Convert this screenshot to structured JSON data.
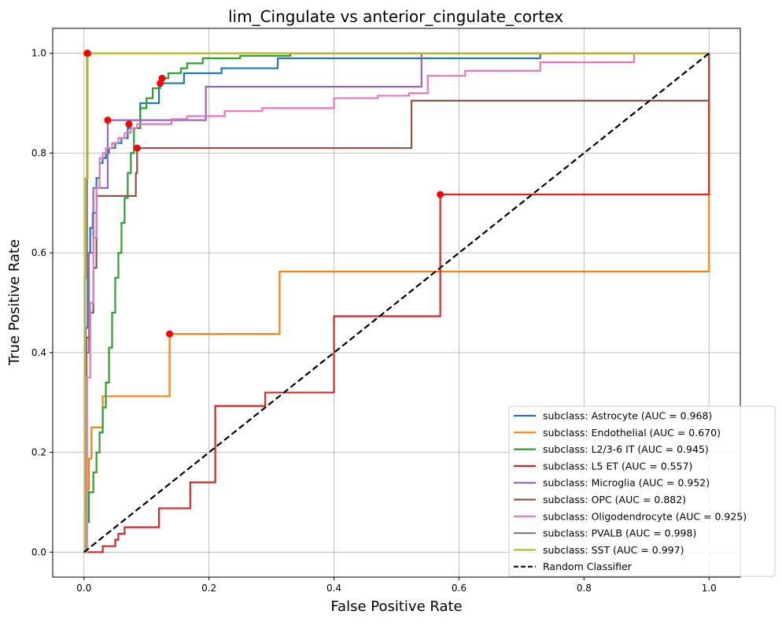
{
  "chart_data": {
    "type": "line",
    "title": "lim_Cingulate vs anterior_cingulate_cortex",
    "xlabel": "False Positive Rate",
    "ylabel": "True Positive Rate",
    "xlim": [
      -0.05,
      1.05
    ],
    "ylim": [
      -0.05,
      1.05
    ],
    "xticks": [
      0.0,
      0.2,
      0.4,
      0.6,
      0.8,
      1.0
    ],
    "yticks": [
      0.0,
      0.2,
      0.4,
      0.6,
      0.8,
      1.0
    ],
    "xtick_labels": [
      "0.0",
      "0.2",
      "0.4",
      "0.6",
      "0.8",
      "1.0"
    ],
    "ytick_labels": [
      "0.0",
      "0.2",
      "0.4",
      "0.6",
      "0.8",
      "1.0"
    ],
    "grid": true,
    "legend_position": "lower-right",
    "series": [
      {
        "name": "subclass: Astrocyte (AUC = 0.968)",
        "color": "#1f77b4",
        "x": [
          0.0,
          0.003,
          0.003,
          0.006,
          0.006,
          0.01,
          0.01,
          0.014,
          0.014,
          0.02,
          0.02,
          0.025,
          0.025,
          0.03,
          0.03,
          0.035,
          0.035,
          0.04,
          0.04,
          0.05,
          0.05,
          0.06,
          0.06,
          0.07,
          0.07,
          0.09,
          0.09,
          0.12,
          0.12,
          0.16,
          0.16,
          0.22,
          0.22,
          0.31,
          0.31,
          0.73,
          0.73,
          1.0
        ],
        "y": [
          0.0,
          0.0,
          0.45,
          0.45,
          0.6,
          0.6,
          0.65,
          0.65,
          0.68,
          0.68,
          0.75,
          0.75,
          0.78,
          0.78,
          0.79,
          0.79,
          0.8,
          0.8,
          0.81,
          0.81,
          0.82,
          0.82,
          0.83,
          0.83,
          0.85,
          0.85,
          0.9,
          0.9,
          0.94,
          0.94,
          0.96,
          0.96,
          0.97,
          0.97,
          0.99,
          0.99,
          1.0,
          1.0
        ]
      },
      {
        "name": "subclass: Endothelial (AUC = 0.670)",
        "color": "#ff7f0e",
        "x": [
          0.0,
          0.003,
          0.003,
          0.008,
          0.008,
          0.012,
          0.012,
          0.018,
          0.018,
          0.03,
          0.03,
          0.137,
          0.137,
          0.313,
          0.313,
          1.0,
          1.0
        ],
        "y": [
          0.0,
          0.0,
          0.125,
          0.125,
          0.1875,
          0.1875,
          0.25,
          0.25,
          0.25,
          0.25,
          0.3125,
          0.3125,
          0.4375,
          0.4375,
          0.5625,
          0.5625,
          1.0
        ]
      },
      {
        "name": "subclass: L2/3-6 IT (AUC = 0.945)",
        "color": "#2ca02c",
        "x": [
          0.0,
          0.004,
          0.004,
          0.008,
          0.008,
          0.015,
          0.015,
          0.02,
          0.02,
          0.025,
          0.025,
          0.03,
          0.03,
          0.035,
          0.035,
          0.04,
          0.04,
          0.045,
          0.045,
          0.05,
          0.05,
          0.055,
          0.055,
          0.06,
          0.06,
          0.065,
          0.065,
          0.07,
          0.07,
          0.075,
          0.075,
          0.08,
          0.08,
          0.09,
          0.09,
          0.1,
          0.1,
          0.11,
          0.11,
          0.122,
          0.122,
          0.135,
          0.135,
          0.155,
          0.155,
          0.165,
          0.165,
          0.19,
          0.19,
          0.25,
          0.25,
          0.33,
          0.33,
          1.0
        ],
        "y": [
          0.0,
          0.0,
          0.06,
          0.06,
          0.12,
          0.12,
          0.16,
          0.16,
          0.2,
          0.2,
          0.24,
          0.24,
          0.29,
          0.29,
          0.34,
          0.34,
          0.41,
          0.41,
          0.48,
          0.48,
          0.55,
          0.55,
          0.6,
          0.6,
          0.66,
          0.66,
          0.71,
          0.71,
          0.76,
          0.76,
          0.8,
          0.8,
          0.85,
          0.85,
          0.89,
          0.89,
          0.91,
          0.91,
          0.93,
          0.93,
          0.95,
          0.95,
          0.96,
          0.96,
          0.97,
          0.97,
          0.98,
          0.98,
          0.99,
          0.99,
          0.995,
          0.995,
          1.0,
          1.0
        ]
      },
      {
        "name": "subclass: L5 ET (AUC = 0.557)",
        "color": "#d62728",
        "x": [
          0.0,
          0.03,
          0.03,
          0.05,
          0.05,
          0.055,
          0.055,
          0.065,
          0.065,
          0.075,
          0.075,
          0.12,
          0.12,
          0.17,
          0.17,
          0.21,
          0.21,
          0.29,
          0.29,
          0.4,
          0.4,
          0.57,
          0.57,
          1.0,
          1.0
        ],
        "y": [
          0.0,
          0.0,
          0.012,
          0.012,
          0.025,
          0.025,
          0.037,
          0.037,
          0.05,
          0.05,
          0.05,
          0.05,
          0.088,
          0.088,
          0.14,
          0.14,
          0.293,
          0.293,
          0.32,
          0.32,
          0.473,
          0.473,
          0.717,
          0.717,
          1.0
        ]
      },
      {
        "name": "subclass: Microglia (AUC = 0.952)",
        "color": "#9467bd",
        "x": [
          0.0,
          0.003,
          0.003,
          0.008,
          0.008,
          0.015,
          0.015,
          0.038,
          0.038,
          0.075,
          0.075,
          0.195,
          0.195,
          0.54,
          0.54,
          1.0
        ],
        "y": [
          0.0,
          0.0,
          0.4,
          0.4,
          0.6,
          0.6,
          0.73,
          0.73,
          0.866,
          0.866,
          0.866,
          0.866,
          0.933,
          0.933,
          1.0,
          1.0
        ]
      },
      {
        "name": "subclass: OPC (AUC = 0.882)",
        "color": "#8c564b",
        "x": [
          0.0,
          0.004,
          0.004,
          0.01,
          0.01,
          0.015,
          0.015,
          0.02,
          0.02,
          0.083,
          0.083,
          0.085,
          0.085,
          0.524,
          0.524,
          1.0,
          1.0
        ],
        "y": [
          0.0,
          0.0,
          0.43,
          0.43,
          0.48,
          0.48,
          0.57,
          0.57,
          0.714,
          0.714,
          0.76,
          0.76,
          0.81,
          0.81,
          0.905,
          0.905,
          1.0
        ]
      },
      {
        "name": "subclass: Oligodendrocyte (AUC = 0.925)",
        "color": "#e377c2",
        "x": [
          0.0,
          0.005,
          0.005,
          0.01,
          0.01,
          0.015,
          0.015,
          0.02,
          0.02,
          0.025,
          0.025,
          0.03,
          0.03,
          0.035,
          0.035,
          0.045,
          0.045,
          0.055,
          0.055,
          0.065,
          0.065,
          0.075,
          0.075,
          0.085,
          0.085,
          0.14,
          0.14,
          0.165,
          0.165,
          0.225,
          0.225,
          0.285,
          0.285,
          0.4,
          0.4,
          0.47,
          0.47,
          0.52,
          0.52,
          0.55,
          0.55,
          0.61,
          0.61,
          0.73,
          0.73,
          0.88,
          0.88,
          1.0
        ],
        "y": [
          0.0,
          0.0,
          0.35,
          0.35,
          0.5,
          0.5,
          0.63,
          0.63,
          0.73,
          0.73,
          0.79,
          0.79,
          0.8,
          0.8,
          0.81,
          0.81,
          0.82,
          0.82,
          0.83,
          0.83,
          0.84,
          0.84,
          0.85,
          0.85,
          0.858,
          0.858,
          0.868,
          0.868,
          0.874,
          0.874,
          0.884,
          0.884,
          0.89,
          0.89,
          0.91,
          0.91,
          0.915,
          0.915,
          0.92,
          0.92,
          0.955,
          0.955,
          0.965,
          0.965,
          0.982,
          0.982,
          1.0,
          1.0
        ]
      },
      {
        "name": "subclass: PVALB (AUC = 0.998)",
        "color": "#7f7f7f",
        "x": [
          0.0,
          0.002,
          0.002,
          0.005,
          0.005,
          1.0
        ],
        "y": [
          0.0,
          0.0,
          0.55,
          0.55,
          1.0,
          1.0
        ]
      },
      {
        "name": "subclass: SST (AUC = 0.997)",
        "color": "#bcbd22",
        "x": [
          0.0,
          0.002,
          0.002,
          0.006,
          0.006,
          1.0
        ],
        "y": [
          0.0,
          0.0,
          0.75,
          0.75,
          1.0,
          1.0
        ]
      },
      {
        "name": "Random Classifier",
        "color": "#000000",
        "dashed": true,
        "x": [
          0.0,
          1.0
        ],
        "y": [
          0.0,
          1.0
        ]
      }
    ],
    "markers": [
      {
        "x": 0.005,
        "y": 1.0
      },
      {
        "x": 0.006,
        "y": 1.0
      },
      {
        "x": 0.038,
        "y": 0.866
      },
      {
        "x": 0.072,
        "y": 0.858
      },
      {
        "x": 0.085,
        "y": 0.81
      },
      {
        "x": 0.122,
        "y": 0.94
      },
      {
        "x": 0.125,
        "y": 0.95
      },
      {
        "x": 0.137,
        "y": 0.4375
      },
      {
        "x": 0.57,
        "y": 0.717
      }
    ],
    "marker_color": "#ff0000"
  }
}
